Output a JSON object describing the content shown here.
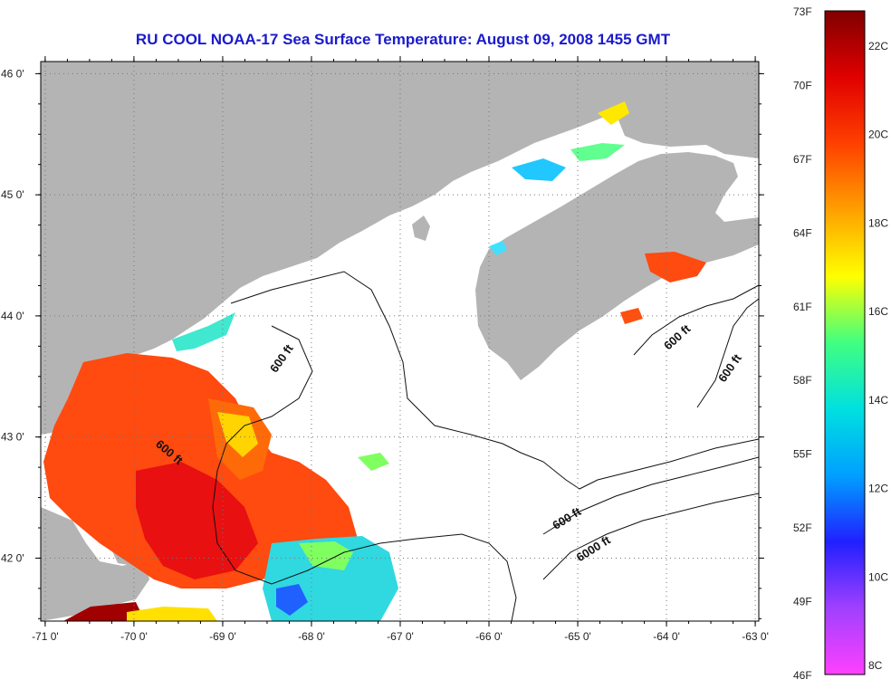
{
  "title": "RU COOL  NOAA-17  Sea Surface Temperature:  August 09, 2008 1455 GMT",
  "map": {
    "lon_range": [
      -71.05,
      -62.96
    ],
    "lat_range": [
      41.48,
      46.1
    ],
    "lon_ticks": [
      {
        "value": -71,
        "label": "-71 0'"
      },
      {
        "value": -70,
        "label": "-70 0'"
      },
      {
        "value": -69,
        "label": "-69 0'"
      },
      {
        "value": -68,
        "label": "-68 0'"
      },
      {
        "value": -67,
        "label": "-67 0'"
      },
      {
        "value": -66,
        "label": "-66 0'"
      },
      {
        "value": -65,
        "label": "-65 0'"
      },
      {
        "value": -64,
        "label": "-64 0'"
      },
      {
        "value": -63,
        "label": "-63 0'"
      }
    ],
    "lat_ticks": [
      {
        "value": 46,
        "label": "46 0'"
      },
      {
        "value": 45,
        "label": "45 0'"
      },
      {
        "value": 44,
        "label": "44 0'"
      },
      {
        "value": 43,
        "label": "43 0'"
      },
      {
        "value": 42,
        "label": "42 0'"
      }
    ],
    "land_color": "#b4b4b4",
    "no_data_color": "#ffffff",
    "contour_labels": [
      {
        "text": "600 ft",
        "lon": -68.3,
        "lat": 43.63,
        "angle": -55
      },
      {
        "text": "600 ft",
        "lon": -69.63,
        "lat": 42.85,
        "angle": 40
      },
      {
        "text": "600 ft",
        "lon": -65.1,
        "lat": 42.3,
        "angle": -32
      },
      {
        "text": "6000 ft",
        "lon": -64.8,
        "lat": 42.05,
        "angle": -32
      },
      {
        "text": "600 ft",
        "lon": -63.85,
        "lat": 43.8,
        "angle": -42
      },
      {
        "text": "600 ft",
        "lon": -63.25,
        "lat": 43.55,
        "angle": -55
      }
    ]
  },
  "colorbar": {
    "stops": [
      "#ff40ff",
      "#a040ff",
      "#2020ff",
      "#00a0ff",
      "#00e0e0",
      "#40ff80",
      "#ffff00",
      "#ffa000",
      "#ff4000",
      "#e00000",
      "#800000"
    ],
    "fahrenheit": [
      "73F",
      "70F",
      "67F",
      "64F",
      "61F",
      "58F",
      "55F",
      "52F",
      "49F",
      "46F"
    ],
    "celsius": [
      "22C",
      "20C",
      "18C",
      "16C",
      "14C",
      "12C",
      "10C",
      "8C"
    ]
  }
}
